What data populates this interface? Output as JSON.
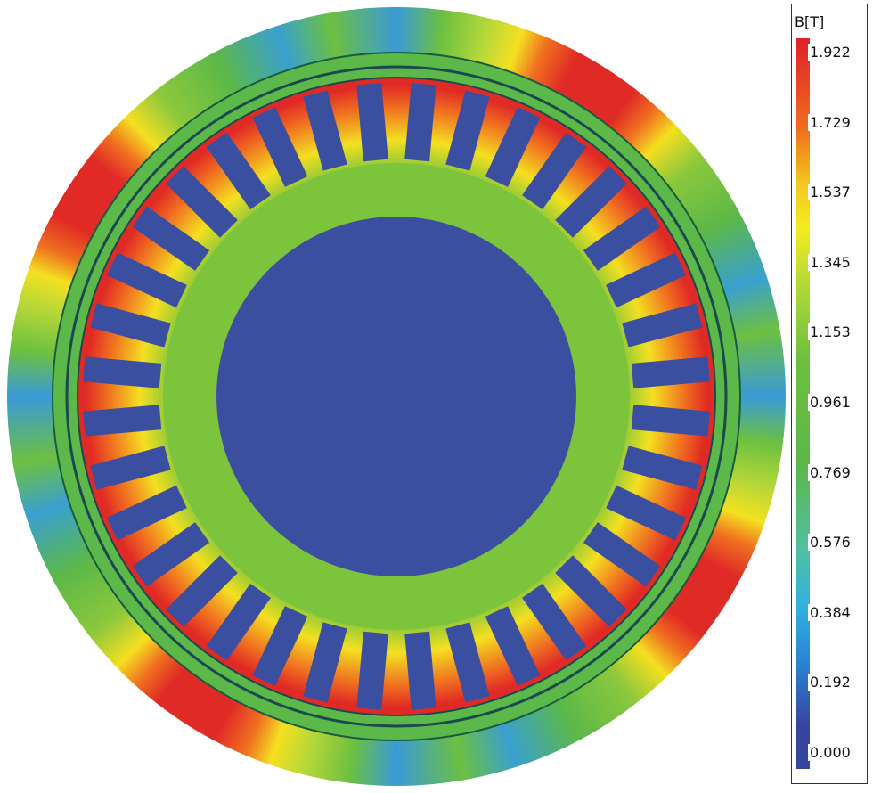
{
  "legend": {
    "title": "B[T]",
    "labels": [
      "1.922",
      "1.729",
      "1.537",
      "1.345",
      "1.153",
      "0.961",
      "0.769",
      "0.576",
      "0.384",
      "0.192",
      "0.000"
    ]
  }
}
